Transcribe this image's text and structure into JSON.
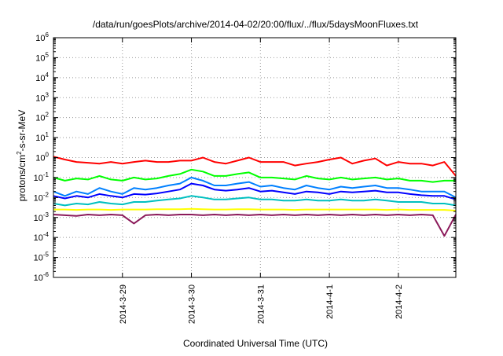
{
  "chart_data": {
    "type": "line",
    "title": "/data/run/goesPlots/archive/2014-04-02/20:00/flux/../flux/5daysMoonFluxes.txt",
    "xlabel": "Coordinated Universal Time (UTC)",
    "ylabel_parts": {
      "base": "protons/cm",
      "sup": "2",
      "rest": "-s-sr-MeV"
    },
    "y_scale": "log",
    "ylim": [
      1e-06,
      1000000
    ],
    "y_ticks": [
      {
        "value": 1e-06,
        "base": "10",
        "exp": "-6"
      },
      {
        "value": 1e-05,
        "base": "10",
        "exp": "-5"
      },
      {
        "value": 0.0001,
        "base": "10",
        "exp": "-4"
      },
      {
        "value": 0.001,
        "base": "10",
        "exp": "-3"
      },
      {
        "value": 0.01,
        "base": "10",
        "exp": "-2"
      },
      {
        "value": 0.1,
        "base": "10",
        "exp": "-1"
      },
      {
        "value": 1,
        "base": "10",
        "exp": "0"
      },
      {
        "value": 10,
        "base": "10",
        "exp": "1"
      },
      {
        "value": 100,
        "base": "10",
        "exp": "2"
      },
      {
        "value": 1000,
        "base": "10",
        "exp": "3"
      },
      {
        "value": 10000,
        "base": "10",
        "exp": "4"
      },
      {
        "value": 100000,
        "base": "10",
        "exp": "5"
      },
      {
        "value": 1000000,
        "base": "10",
        "exp": "6"
      }
    ],
    "x_scale": "time",
    "xlim": [
      "2014-03-28T00:00",
      "2014-04-02T20:00"
    ],
    "x_ticks": [
      {
        "value": "2014-03-29T00:00",
        "label": "2014-3-29"
      },
      {
        "value": "2014-03-30T00:00",
        "label": "2014-3-30"
      },
      {
        "value": "2014-03-31T00:00",
        "label": "2014-3-31"
      },
      {
        "value": "2014-04-01T00:00",
        "label": "2014-4-1"
      },
      {
        "value": "2014-04-02T00:00",
        "label": "2014-4-2"
      }
    ],
    "grid": true,
    "legend": "none",
    "x": [
      "2014-03-28T00:00",
      "2014-03-28T04:00",
      "2014-03-28T08:00",
      "2014-03-28T12:00",
      "2014-03-28T16:00",
      "2014-03-28T20:00",
      "2014-03-29T00:00",
      "2014-03-29T04:00",
      "2014-03-29T08:00",
      "2014-03-29T12:00",
      "2014-03-29T16:00",
      "2014-03-29T20:00",
      "2014-03-30T00:00",
      "2014-03-30T04:00",
      "2014-03-30T08:00",
      "2014-03-30T12:00",
      "2014-03-30T16:00",
      "2014-03-30T20:00",
      "2014-03-31T00:00",
      "2014-03-31T04:00",
      "2014-03-31T08:00",
      "2014-03-31T12:00",
      "2014-03-31T16:00",
      "2014-03-31T20:00",
      "2014-04-01T00:00",
      "2014-04-01T04:00",
      "2014-04-01T08:00",
      "2014-04-01T12:00",
      "2014-04-01T16:00",
      "2014-04-01T20:00",
      "2014-04-02T00:00",
      "2014-04-02T04:00",
      "2014-04-02T08:00",
      "2014-04-02T12:00",
      "2014-04-02T16:00",
      "2014-04-02T20:00"
    ],
    "series": [
      {
        "color": "#ff0000",
        "values": [
          1.1,
          0.8,
          0.6,
          0.55,
          0.5,
          0.6,
          0.5,
          0.6,
          0.7,
          0.6,
          0.6,
          0.7,
          0.7,
          1.0,
          0.6,
          0.5,
          0.7,
          1.0,
          0.6,
          0.6,
          0.6,
          0.4,
          0.5,
          0.6,
          0.8,
          1.0,
          0.5,
          0.7,
          0.9,
          0.4,
          0.6,
          0.5,
          0.5,
          0.4,
          0.6,
          0.12
        ]
      },
      {
        "color": "#00ff00",
        "values": [
          0.1,
          0.07,
          0.09,
          0.08,
          0.12,
          0.08,
          0.07,
          0.1,
          0.08,
          0.09,
          0.12,
          0.15,
          0.25,
          0.2,
          0.12,
          0.12,
          0.15,
          0.18,
          0.1,
          0.1,
          0.09,
          0.08,
          0.12,
          0.09,
          0.08,
          0.1,
          0.08,
          0.09,
          0.1,
          0.08,
          0.09,
          0.07,
          0.07,
          0.06,
          0.07,
          0.07
        ]
      },
      {
        "color": "#0080ff",
        "values": [
          0.02,
          0.012,
          0.02,
          0.015,
          0.03,
          0.02,
          0.015,
          0.03,
          0.025,
          0.03,
          0.04,
          0.05,
          0.1,
          0.07,
          0.04,
          0.04,
          0.05,
          0.06,
          0.035,
          0.04,
          0.03,
          0.025,
          0.04,
          0.03,
          0.025,
          0.035,
          0.03,
          0.035,
          0.04,
          0.03,
          0.03,
          0.025,
          0.02,
          0.02,
          0.02,
          0.01
        ]
      },
      {
        "color": "#0000ff",
        "values": [
          0.012,
          0.009,
          0.012,
          0.01,
          0.015,
          0.012,
          0.01,
          0.015,
          0.014,
          0.016,
          0.02,
          0.025,
          0.05,
          0.04,
          0.025,
          0.022,
          0.025,
          0.03,
          0.02,
          0.022,
          0.018,
          0.015,
          0.02,
          0.018,
          0.015,
          0.02,
          0.018,
          0.02,
          0.022,
          0.018,
          0.018,
          0.015,
          0.013,
          0.012,
          0.012,
          0.008
        ]
      },
      {
        "color": "#00c0c0",
        "values": [
          0.005,
          0.004,
          0.005,
          0.0045,
          0.006,
          0.005,
          0.0045,
          0.006,
          0.006,
          0.007,
          0.008,
          0.009,
          0.012,
          0.01,
          0.008,
          0.008,
          0.009,
          0.01,
          0.008,
          0.008,
          0.007,
          0.007,
          0.008,
          0.007,
          0.007,
          0.008,
          0.007,
          0.007,
          0.008,
          0.007,
          0.006,
          0.006,
          0.006,
          0.005,
          0.005,
          0.004
        ]
      },
      {
        "color": "#ffff00",
        "values": [
          0.0025,
          0.0025,
          0.0024,
          0.0025,
          0.0025,
          0.0024,
          0.0025,
          0.0025,
          0.0025,
          0.0026,
          0.0026,
          0.0026,
          0.0027,
          0.0026,
          0.0025,
          0.0025,
          0.0026,
          0.0026,
          0.0025,
          0.0025,
          0.0025,
          0.0024,
          0.0025,
          0.0025,
          0.0025,
          0.0025,
          0.0025,
          0.0025,
          0.0025,
          0.0024,
          0.0025,
          0.0024,
          0.0024,
          0.0024,
          0.0024,
          0.0022
        ]
      },
      {
        "color": "#8b1a5a",
        "values": [
          0.0014,
          0.0013,
          0.0012,
          0.0014,
          0.0013,
          0.0014,
          0.0013,
          0.0005,
          0.0013,
          0.0014,
          0.0013,
          0.0014,
          0.0014,
          0.0013,
          0.0014,
          0.0013,
          0.0014,
          0.0013,
          0.0014,
          0.0013,
          0.0014,
          0.0013,
          0.0014,
          0.0013,
          0.0014,
          0.0013,
          0.0014,
          0.0013,
          0.0014,
          0.0013,
          0.0014,
          0.0013,
          0.0014,
          0.0013,
          0.00012,
          0.0014
        ]
      }
    ]
  }
}
